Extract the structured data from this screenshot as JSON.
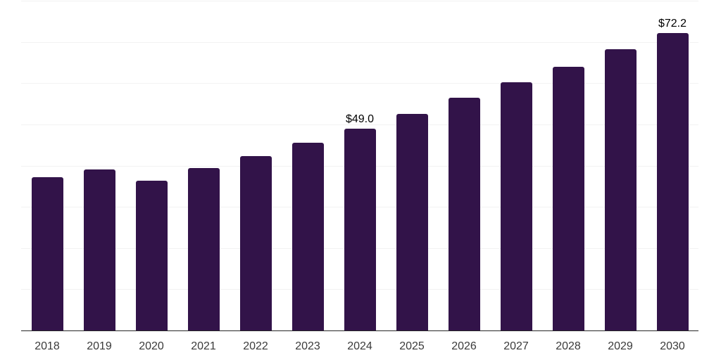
{
  "chart_data": {
    "type": "bar",
    "title": "",
    "xlabel": "",
    "ylabel": "",
    "categories": [
      "2018",
      "2019",
      "2020",
      "2021",
      "2022",
      "2023",
      "2024",
      "2025",
      "2026",
      "2027",
      "2028",
      "2029",
      "2030"
    ],
    "values": [
      37.2,
      39.1,
      36.4,
      39.4,
      42.3,
      45.6,
      49.0,
      52.5,
      56.4,
      60.2,
      63.9,
      68.2,
      72.2
    ],
    "point_labels": [
      "",
      "",
      "",
      "",
      "",
      "",
      "$49.0",
      "",
      "",
      "",
      "",
      "",
      "$72.2"
    ],
    "ylim": [
      0,
      80
    ],
    "gridline_step": 10,
    "grid": true,
    "legend_position": "none",
    "bar_color": "#321349",
    "axis_line_color": "#262626",
    "gridline_color": "#f2f2f2",
    "data_label_color": "#000000",
    "tick_label_color": "#3a3a3a",
    "background_color": "#ffffff"
  }
}
